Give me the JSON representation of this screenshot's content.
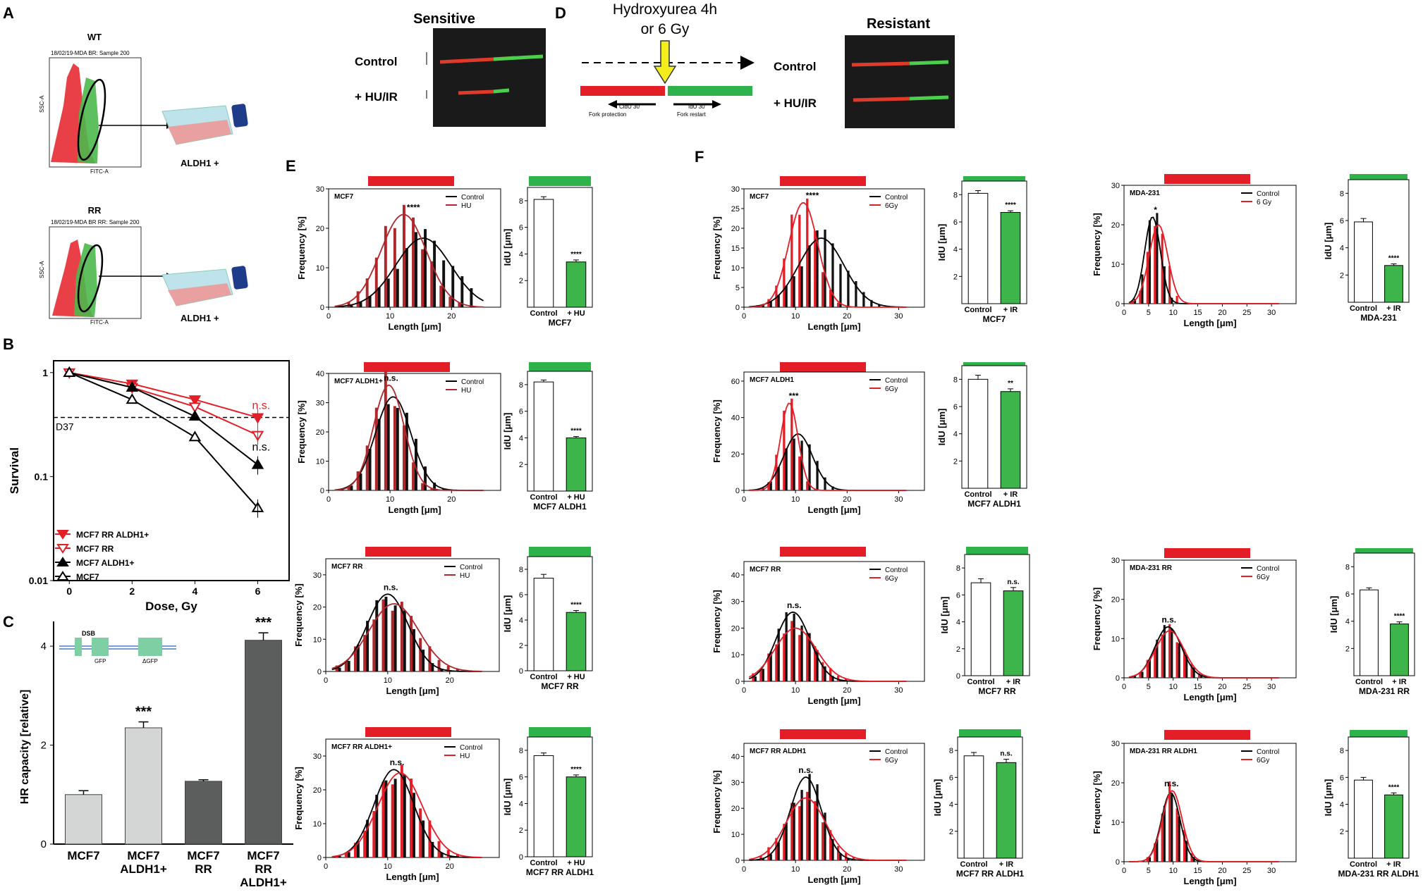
{
  "panels": {
    "A": {
      "label": "A",
      "wt": {
        "title": "WT",
        "header": "18/02/19-MDA BR: Sample 200",
        "ylabel": "SSC-A",
        "xlabel": "FITC-A",
        "result": "ALDH1 +"
      },
      "rr": {
        "title": "RR",
        "header": "18/02/19-MDA BR RR: Sample 200",
        "ylabel": "SSC-A",
        "xlabel": "FITC-A",
        "result": "ALDH1 +"
      }
    },
    "top_fibers": {
      "sensitive_title": "Sensitive",
      "resistant_title": "Resistant",
      "control": "Control",
      "treated": "+ HU/IR"
    },
    "D": {
      "label": "D",
      "title_line1": "Hydroxyurea 4h",
      "title_line2": "or 6 Gy",
      "cldu": "CldU 30'",
      "idu": "IdU 30'",
      "fork_protection": "Fork protection",
      "fork_restart": "Fork restart"
    },
    "E_label": "E",
    "F_label": "F"
  },
  "chart_data": [
    {
      "id": "B",
      "type": "line",
      "label": "B",
      "xlabel": "Dose, Gy",
      "ylabel": "Survival",
      "yscale": "log",
      "x_ticks": [
        0,
        2,
        4,
        6
      ],
      "y_ticks": [
        "1",
        "0.1",
        "0.01"
      ],
      "ylim": [
        0.01,
        1.3
      ],
      "reference": {
        "name": "D37",
        "value": 0.37
      },
      "annotations": [
        "n.s.",
        "n.s."
      ],
      "series": [
        {
          "name": "MCF7 RR ALDH1+",
          "color": "#e41e26",
          "marker": "tri-down-filled",
          "x": [
            0,
            2,
            4,
            6
          ],
          "y": [
            1.0,
            0.78,
            0.55,
            0.37
          ]
        },
        {
          "name": "MCF7 RR",
          "color": "#e41e26",
          "marker": "tri-down-open",
          "x": [
            0,
            2,
            4,
            6
          ],
          "y": [
            1.0,
            0.72,
            0.47,
            0.25
          ]
        },
        {
          "name": "MCF7 ALDH1+",
          "color": "#000000",
          "marker": "tri-up-filled",
          "x": [
            0,
            2,
            4,
            6
          ],
          "y": [
            1.0,
            0.72,
            0.38,
            0.13
          ]
        },
        {
          "name": "MCF7",
          "color": "#000000",
          "marker": "tri-up-open",
          "x": [
            0,
            2,
            4,
            6
          ],
          "y": [
            1.0,
            0.55,
            0.24,
            0.05
          ]
        }
      ]
    },
    {
      "id": "C",
      "type": "bar",
      "label": "C",
      "ylabel": "HR capacity [relative]",
      "ylim": [
        0,
        4.5
      ],
      "y_ticks": [
        0,
        2,
        4
      ],
      "categories": [
        "MCF7",
        "MCF7 ALDH1+",
        "MCF7 RR",
        "MCF7 RR ALDH1+"
      ],
      "values": [
        1.0,
        2.35,
        1.27,
        4.12
      ],
      "errors": [
        0.08,
        0.12,
        0.03,
        0.15
      ],
      "colors": [
        "#d4d6d6",
        "#d4d6d6",
        "#5b5e5d",
        "#5b5e5d"
      ],
      "significance": [
        "",
        "***",
        "",
        "***"
      ],
      "inset": {
        "dsb": "DSB",
        "gfp": "GFP",
        "dgfp": "ΔGFP"
      }
    },
    {
      "id": "E1",
      "type": "histogram",
      "title": "MCF7",
      "legend": [
        "Control",
        "HU"
      ],
      "treat_color": "#b0272b",
      "xlabel": "Length [μm]",
      "ylabel": "Frequency [%]",
      "ymax": 30,
      "y_ticks": [
        0,
        10,
        20,
        30
      ],
      "xmax": 28,
      "x_ticks": [
        0,
        10,
        20
      ],
      "ctrl_mu": 15.4,
      "ctrl_sd": 4.5,
      "ctrl_peak": 17.5,
      "treat_mu": 12.2,
      "treat_sd": 3.7,
      "treat_peak": 23.5,
      "sig": "****",
      "bar": {
        "ylabel": "IdU [μm]",
        "ymax": 9,
        "y_ticks": [
          2,
          4,
          6,
          8
        ],
        "categories": [
          "Control",
          "+ HU"
        ],
        "values": [
          8.1,
          3.4
        ],
        "errors": [
          0.2,
          0.15
        ],
        "sig": "****",
        "label": "MCF7"
      }
    },
    {
      "id": "E2",
      "type": "histogram",
      "title": "MCF7 ALDH1+",
      "legend": [
        "Control",
        "HU"
      ],
      "treat_color": "#b0272b",
      "xlabel": "Length [μm]",
      "ylabel": "Frequency [%]",
      "ymax": 40,
      "y_ticks": [
        0,
        10,
        20,
        30,
        40
      ],
      "xmax": 28,
      "x_ticks": [
        0,
        10,
        20
      ],
      "ctrl_mu": 10.5,
      "ctrl_sd": 2.9,
      "ctrl_peak": 32,
      "treat_mu": 9.8,
      "treat_sd": 2.5,
      "treat_peak": 36,
      "sig": "n.s.",
      "bar": {
        "ylabel": "IdU [μm]",
        "ymax": 9,
        "y_ticks": [
          2,
          4,
          6,
          8
        ],
        "categories": [
          "Control",
          "+ HU"
        ],
        "values": [
          8.2,
          4.0
        ],
        "errors": [
          0.15,
          0.1
        ],
        "sig": "****",
        "label": "MCF7 ALDH1"
      }
    },
    {
      "id": "E3",
      "type": "histogram",
      "title": "MCF7 RR",
      "legend": [
        "Control",
        "HU"
      ],
      "treat_color": "#b0272b",
      "xlabel": "Length [μm]",
      "ylabel": "Frequency [%]",
      "ymax": 35,
      "y_ticks": [
        0,
        10,
        20,
        30
      ],
      "xmax": 28,
      "x_ticks": [
        0,
        10,
        20
      ],
      "ctrl_mu": 10.0,
      "ctrl_sd": 3.3,
      "ctrl_peak": 24,
      "treat_mu": 11.0,
      "treat_sd": 4.0,
      "treat_peak": 21,
      "sig": "n.s.",
      "bar": {
        "ylabel": "IdU [μm]",
        "ymax": 9,
        "y_ticks": [
          0,
          2,
          4,
          6,
          8
        ],
        "categories": [
          "Control",
          "+ HU"
        ],
        "values": [
          7.3,
          4.6
        ],
        "errors": [
          0.3,
          0.15
        ],
        "sig": "****",
        "label": "MCF7 RR"
      }
    },
    {
      "id": "E4",
      "type": "histogram",
      "title": "MCF7 RR ALDH1+",
      "legend": [
        "Control",
        "HU"
      ],
      "treat_color": "#e41e26",
      "xlabel": "Length [μm]",
      "ylabel": "Frequency [%]",
      "ymax": 35,
      "y_ticks": [
        0,
        10,
        20,
        30
      ],
      "xmax": 28,
      "x_ticks": [
        0,
        10,
        20
      ],
      "ctrl_mu": 11.0,
      "ctrl_sd": 3.2,
      "ctrl_peak": 26,
      "treat_mu": 12.0,
      "treat_sd": 3.6,
      "treat_peak": 25,
      "sig": "n.s.",
      "bar": {
        "ylabel": "IdU [μm]",
        "ymax": 9,
        "y_ticks": [
          0,
          2,
          4,
          6,
          8
        ],
        "categories": [
          "Control",
          "+ HU"
        ],
        "values": [
          7.6,
          6.0
        ],
        "errors": [
          0.2,
          0.15
        ],
        "sig": "****",
        "label": "MCF7 RR ALDH1"
      }
    },
    {
      "id": "F1",
      "type": "histogram",
      "title": "MCF7",
      "legend": [
        "Control",
        "6Gy"
      ],
      "treat_color": "#e41e26",
      "xlabel": "Length [μm]",
      "ylabel": "Frequency [%]",
      "ymax": 30,
      "y_ticks": [
        0,
        5,
        10,
        15,
        20,
        25,
        30
      ],
      "xmax": 35,
      "x_ticks": [
        0,
        10,
        20,
        30
      ],
      "ctrl_mu": 15.0,
      "ctrl_sd": 4.4,
      "ctrl_peak": 17.5,
      "treat_mu": 11.5,
      "treat_sd": 2.8,
      "treat_peak": 26.5,
      "sig": "****",
      "bar": {
        "ylabel": "IdU [μm]",
        "ymax": 9,
        "y_ticks": [
          2,
          4,
          6,
          8
        ],
        "categories": [
          "Control",
          "+ IR"
        ],
        "values": [
          8.1,
          6.7
        ],
        "errors": [
          0.2,
          0.12
        ],
        "sig": "****",
        "label": "MCF7"
      }
    },
    {
      "id": "F2",
      "type": "histogram",
      "title": "MCF7 ALDH1",
      "legend": [
        "Control",
        "6Gy"
      ],
      "treat_color": "#e41e26",
      "xlabel": "Length [μm]",
      "ylabel": "Frequency [%]",
      "ymax": 65,
      "y_ticks": [
        0,
        20,
        40,
        60
      ],
      "xmax": 35,
      "x_ticks": [
        0,
        10,
        20,
        30
      ],
      "ctrl_mu": 10.5,
      "ctrl_sd": 2.8,
      "ctrl_peak": 31,
      "treat_mu": 8.8,
      "treat_sd": 1.7,
      "treat_peak": 48,
      "sig": "***",
      "bar": {
        "ylabel": "IdU [μm]",
        "ymax": 9,
        "y_ticks": [
          2,
          4,
          6,
          8
        ],
        "categories": [
          "Control",
          "+ IR"
        ],
        "values": [
          8.0,
          7.1
        ],
        "errors": [
          0.3,
          0.2
        ],
        "sig": "**",
        "label": "MCF7 ALDH1"
      }
    },
    {
      "id": "F3",
      "type": "histogram",
      "title": "MCF7 RR",
      "legend": [
        "Control",
        "6Gy"
      ],
      "treat_color": "#e41e26",
      "xlabel": "Length [μm]",
      "ylabel": "Frequency [%]",
      "ymax": 45,
      "y_ticks": [
        0,
        10,
        20,
        30,
        40
      ],
      "xmax": 35,
      "x_ticks": [
        0,
        10,
        20,
        30
      ],
      "ctrl_mu": 9.5,
      "ctrl_sd": 3.3,
      "ctrl_peak": 26,
      "treat_mu": 10.0,
      "treat_sd": 4.0,
      "treat_peak": 20,
      "sig": "n.s.",
      "bar": {
        "ylabel": "IdU [μm]",
        "ymax": 9,
        "y_ticks": [
          0,
          2,
          4,
          6,
          8
        ],
        "categories": [
          "Control",
          "+ IR"
        ],
        "values": [
          6.9,
          6.3
        ],
        "errors": [
          0.3,
          0.25
        ],
        "sig": "n.s.",
        "label": "MCF7 RR"
      }
    },
    {
      "id": "F4",
      "type": "histogram",
      "title": "MCF7 RR ALDH1",
      "legend": [
        "Control",
        "6Gy"
      ],
      "treat_color": "#e41e26",
      "xlabel": "Length [μm]",
      "ylabel": "Frequency [%]",
      "ymax": 45,
      "y_ticks": [
        0,
        10,
        20,
        30,
        40
      ],
      "xmax": 35,
      "x_ticks": [
        0,
        10,
        20,
        30
      ],
      "ctrl_mu": 12.0,
      "ctrl_sd": 3.0,
      "ctrl_peak": 32,
      "treat_mu": 12.0,
      "treat_sd": 3.8,
      "treat_peak": 24,
      "sig": "n.s.",
      "bar": {
        "ylabel": "IdU [μm]",
        "ymax": 9,
        "y_ticks": [
          2,
          4,
          6,
          8
        ],
        "categories": [
          "Control",
          "+ IR"
        ],
        "values": [
          7.6,
          7.1
        ],
        "errors": [
          0.25,
          0.25
        ],
        "sig": "n.s.",
        "label": "MCF7 RR ALDH1"
      }
    },
    {
      "id": "G1",
      "type": "histogram",
      "title": "MDA-231",
      "legend": [
        "Control",
        "6 Gy"
      ],
      "treat_color": "#e41e26",
      "xlabel": "Length [μm]",
      "ylabel": "Frequency [%]",
      "ymax": 30,
      "y_ticks": [
        0,
        10,
        20,
        30
      ],
      "xmax": 35,
      "x_ticks": [
        0,
        5,
        10,
        15,
        20,
        25,
        30
      ],
      "ctrl_mu": 5.8,
      "ctrl_sd": 1.6,
      "ctrl_peak": 22,
      "treat_mu": 7.0,
      "treat_sd": 1.9,
      "treat_peak": 20,
      "sig": "*",
      "bar": {
        "ylabel": "IdU [μm]",
        "ymax": 9,
        "y_ticks": [
          2,
          4,
          6,
          8
        ],
        "categories": [
          "Control",
          "+ IR"
        ],
        "values": [
          5.9,
          2.7
        ],
        "errors": [
          0.25,
          0.12
        ],
        "sig": "****",
        "label": "MDA-231"
      }
    },
    {
      "id": "G2",
      "type": "histogram",
      "title": "MDA-231 RR",
      "legend": [
        "Control",
        "6Gy"
      ],
      "treat_color": "#e41e26",
      "xlabel": "Length [μm]",
      "ylabel": "Frequency [%]",
      "ymax": 30,
      "y_ticks": [
        0,
        10,
        20,
        30
      ],
      "xmax": 35,
      "x_ticks": [
        0,
        5,
        10,
        15,
        20,
        25,
        30
      ],
      "ctrl_mu": 9.0,
      "ctrl_sd": 2.7,
      "ctrl_peak": 13,
      "treat_mu": 9.3,
      "treat_sd": 2.9,
      "treat_peak": 12,
      "sig": "n.s.",
      "bar": {
        "ylabel": "IdU [μm]",
        "ymax": 9,
        "y_ticks": [
          2,
          4,
          6,
          8
        ],
        "categories": [
          "Control",
          "+ IR"
        ],
        "values": [
          6.3,
          3.8
        ],
        "errors": [
          0.15,
          0.15
        ],
        "sig": "****",
        "label": "MDA-231 RR"
      }
    },
    {
      "id": "G3",
      "type": "histogram",
      "title": "MDA-231 RR ALDH1",
      "legend": [
        "Control",
        "6Gy"
      ],
      "treat_color": "#e41e26",
      "xlabel": "Length [μm]",
      "ylabel": "Frequency [%]",
      "ymax": 30,
      "y_ticks": [
        0,
        10,
        20,
        30
      ],
      "xmax": 35,
      "x_ticks": [
        0,
        5,
        10,
        15,
        20,
        25,
        30
      ],
      "ctrl_mu": 9.5,
      "ctrl_sd": 1.9,
      "ctrl_peak": 17.5,
      "treat_mu": 9.8,
      "treat_sd": 2.0,
      "treat_peak": 18,
      "sig": "n.s.",
      "bar": {
        "ylabel": "IdU [μm]",
        "ymax": 9,
        "y_ticks": [
          2,
          4,
          6,
          8
        ],
        "categories": [
          "Control",
          "+ IR"
        ],
        "values": [
          5.8,
          4.7
        ],
        "errors": [
          0.2,
          0.15
        ],
        "sig": "****",
        "label": "MDA-231 RR ALDH1"
      }
    }
  ]
}
